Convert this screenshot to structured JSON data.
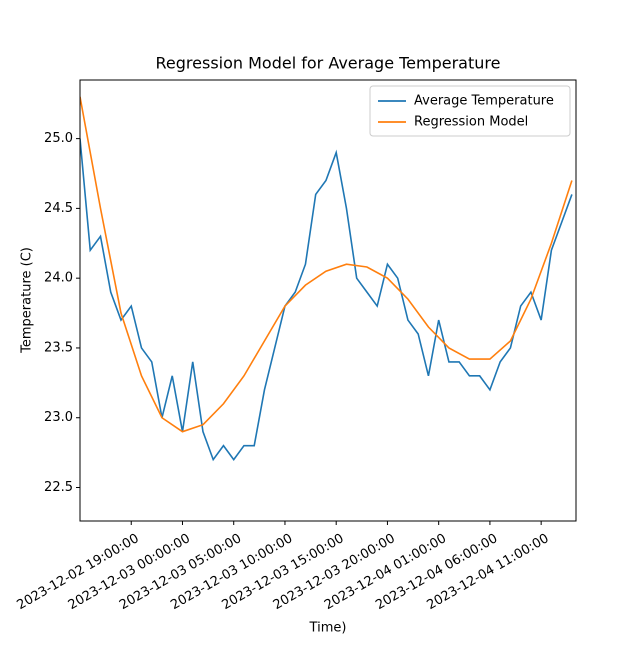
{
  "chart_data": {
    "type": "line",
    "title": "Regression Model for Average Temperature",
    "xlabel": "Time)",
    "ylabel": "Temperature (C)",
    "xlim": [
      "2023-12-02 14:00:00",
      "2023-12-04 14:24:00"
    ],
    "ylim": [
      22.26,
      25.42
    ],
    "xticks": [
      "2023-12-02 19:00:00",
      "2023-12-03 00:00:00",
      "2023-12-03 05:00:00",
      "2023-12-03 10:00:00",
      "2023-12-03 15:00:00",
      "2023-12-03 20:00:00",
      "2023-12-04 01:00:00",
      "2023-12-04 06:00:00",
      "2023-12-04 11:00:00"
    ],
    "yticks": [
      {
        "value": 22.5,
        "label": "22.5"
      },
      {
        "value": 23,
        "label": "23.0"
      },
      {
        "value": 23.5,
        "label": "23.5"
      },
      {
        "value": 24,
        "label": "24.0"
      },
      {
        "value": 24.5,
        "label": "24.5"
      },
      {
        "value": 25,
        "label": "25.0"
      }
    ],
    "legend": "upper right",
    "series": [
      {
        "name": "Average Temperature",
        "color": "#1f77b4",
        "x": [
          "2023-12-02 14:00:00",
          "2023-12-02 15:00:00",
          "2023-12-02 16:00:00",
          "2023-12-02 17:00:00",
          "2023-12-02 18:00:00",
          "2023-12-02 19:00:00",
          "2023-12-02 20:00:00",
          "2023-12-02 21:00:00",
          "2023-12-02 22:00:00",
          "2023-12-02 23:00:00",
          "2023-12-03 00:00:00",
          "2023-12-03 01:00:00",
          "2023-12-03 02:00:00",
          "2023-12-03 03:00:00",
          "2023-12-03 04:00:00",
          "2023-12-03 05:00:00",
          "2023-12-03 06:00:00",
          "2023-12-03 07:00:00",
          "2023-12-03 08:00:00",
          "2023-12-03 09:00:00",
          "2023-12-03 10:00:00",
          "2023-12-03 11:00:00",
          "2023-12-03 12:00:00",
          "2023-12-03 13:00:00",
          "2023-12-03 14:00:00",
          "2023-12-03 15:00:00",
          "2023-12-03 16:00:00",
          "2023-12-03 17:00:00",
          "2023-12-03 18:00:00",
          "2023-12-03 19:00:00",
          "2023-12-03 20:00:00",
          "2023-12-03 21:00:00",
          "2023-12-03 22:00:00",
          "2023-12-03 23:00:00",
          "2023-12-04 00:00:00",
          "2023-12-04 01:00:00",
          "2023-12-04 02:00:00",
          "2023-12-04 03:00:00",
          "2023-12-04 04:00:00",
          "2023-12-04 05:00:00",
          "2023-12-04 06:00:00",
          "2023-12-04 07:00:00",
          "2023-12-04 08:00:00",
          "2023-12-04 09:00:00",
          "2023-12-04 10:00:00",
          "2023-12-04 11:00:00",
          "2023-12-04 12:00:00",
          "2023-12-04 13:00:00",
          "2023-12-04 14:00:00"
        ],
        "values": [
          25.0,
          24.2,
          24.3,
          23.9,
          23.7,
          23.8,
          23.5,
          23.4,
          23.0,
          23.3,
          22.9,
          23.4,
          22.9,
          22.7,
          22.8,
          22.7,
          22.8,
          22.8,
          23.2,
          23.5,
          23.8,
          23.9,
          24.1,
          24.6,
          24.7,
          24.9,
          24.5,
          24.0,
          23.9,
          23.8,
          24.1,
          24.0,
          23.7,
          23.6,
          23.3,
          23.7,
          23.4,
          23.4,
          23.3,
          23.3,
          23.2,
          23.4,
          23.5,
          23.8,
          23.9,
          23.7,
          24.2,
          24.4,
          24.6
        ]
      },
      {
        "name": "Regression Model",
        "color": "#ff7f0e",
        "x": [
          "2023-12-02 14:00:00",
          "2023-12-02 16:00:00",
          "2023-12-02 18:00:00",
          "2023-12-02 20:00:00",
          "2023-12-02 22:00:00",
          "2023-12-03 00:00:00",
          "2023-12-03 02:00:00",
          "2023-12-03 04:00:00",
          "2023-12-03 06:00:00",
          "2023-12-03 08:00:00",
          "2023-12-03 10:00:00",
          "2023-12-03 12:00:00",
          "2023-12-03 14:00:00",
          "2023-12-03 16:00:00",
          "2023-12-03 18:00:00",
          "2023-12-03 20:00:00",
          "2023-12-03 22:00:00",
          "2023-12-04 00:00:00",
          "2023-12-04 02:00:00",
          "2023-12-04 04:00:00",
          "2023-12-04 06:00:00",
          "2023-12-04 08:00:00",
          "2023-12-04 10:00:00",
          "2023-12-04 12:00:00",
          "2023-12-04 14:00:00"
        ],
        "values": [
          25.3,
          24.5,
          23.75,
          23.3,
          23.0,
          22.9,
          22.95,
          23.1,
          23.3,
          23.55,
          23.8,
          23.95,
          24.05,
          24.1,
          24.08,
          24.0,
          23.85,
          23.65,
          23.5,
          23.42,
          23.42,
          23.55,
          23.85,
          24.25,
          24.7
        ]
      }
    ]
  }
}
